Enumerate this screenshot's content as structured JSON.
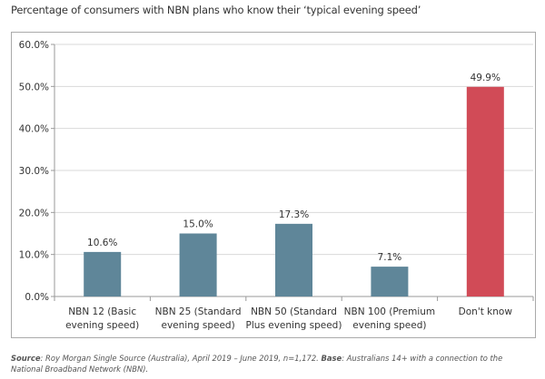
{
  "title": "Percentage of consumers with NBN plans who know their ‘typical evening speed’",
  "chart_data": {
    "type": "bar",
    "title": "Percentage of consumers with NBN plans who know their ‘typical evening speed’",
    "categories": [
      [
        "NBN 12 (Basic",
        "evening speed)"
      ],
      [
        "NBN 25 (Standard",
        "evening speed)"
      ],
      [
        "NBN 50 (Standard",
        "Plus evening speed)"
      ],
      [
        "NBN 100 (Premium",
        "evening speed)"
      ],
      [
        "Don't know"
      ]
    ],
    "values": [
      10.6,
      15.0,
      17.3,
      7.1,
      49.9
    ],
    "data_labels": [
      "10.6%",
      "15.0%",
      "17.3%",
      "7.1%",
      "49.9%"
    ],
    "colors": [
      "#5f8699",
      "#5f8699",
      "#5f8699",
      "#5f8699",
      "#d14b57"
    ],
    "ylim": [
      0,
      60
    ],
    "yticks": [
      "0.0%",
      "10.0%",
      "20.0%",
      "30.0%",
      "40.0%",
      "50.0%",
      "60.0%"
    ],
    "xlabel": "",
    "ylabel": "",
    "grid": true
  },
  "source": {
    "label1": "Source",
    "text1": ": Roy Morgan Single Source (Australia), April 2019 – June 2019, n=1,172. ",
    "label2": "Base",
    "text2": ": Australians 14+ with a connection to the National Broadband Network (NBN)."
  }
}
